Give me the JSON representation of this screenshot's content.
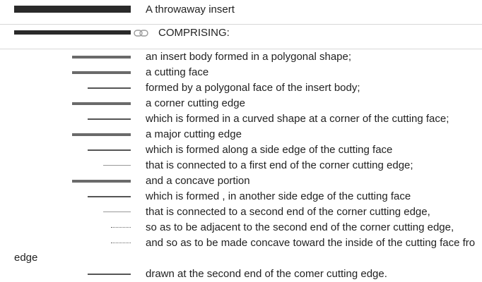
{
  "header": {
    "title": "A throwaway insert",
    "preamble": "COMPRISING:"
  },
  "claims": [
    {
      "text": "an insert body formed in a polygonal shape;",
      "level": 1
    },
    {
      "text": "a cutting face",
      "level": 1
    },
    {
      "text": "formed by a polygonal face of the insert body;",
      "level": 2
    },
    {
      "text": "a corner cutting edge",
      "level": 1
    },
    {
      "text": "which is formed in a curved shape at a corner of the cutting face;",
      "level": 2
    },
    {
      "text": "a major cutting edge",
      "level": 1
    },
    {
      "text": "which is formed along a side edge of the cutting face",
      "level": 2
    },
    {
      "text": "that is connected to a first end of the corner cutting edge;",
      "level": 3
    },
    {
      "text": "and a concave portion",
      "level": 1
    },
    {
      "text": "which is formed , in another side edge of the cutting face",
      "level": 2
    },
    {
      "text": "that is connected to a second end of the corner cutting edge,",
      "level": 3
    },
    {
      "text": "so as to be adjacent to the second end of the corner cutting edge,",
      "level": 4
    },
    {
      "text": "and so as to be made concave toward the inside of the cutting face fro",
      "level": 4
    }
  ],
  "wrapped_text": "edge",
  "last_claim": {
    "text": "drawn at the second end of the comer cutting edge.",
    "level": 2
  },
  "icons": {
    "link": "link-icon"
  }
}
